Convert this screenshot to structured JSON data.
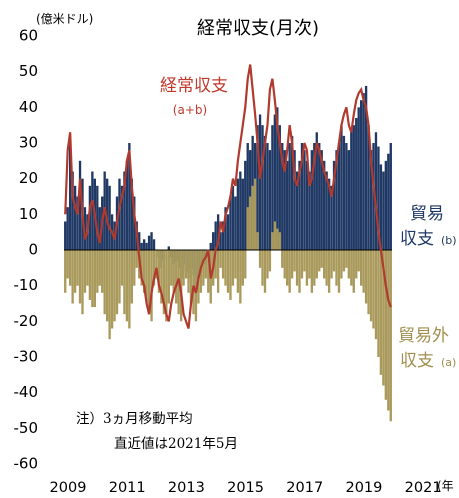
{
  "chart_data": {
    "type": "bar",
    "title": "経常収支(月次)",
    "unit_label": "(億米ドル)",
    "x_unit_label": "(年",
    "ylim": [
      -60,
      60
    ],
    "yticks": [
      60,
      50,
      40,
      30,
      20,
      10,
      0,
      -10,
      -20,
      -30,
      -40,
      -50,
      -60
    ],
    "xticks": [
      "2009",
      "2011",
      "2013",
      "2015",
      "2017",
      "2019",
      "2021"
    ],
    "x_range": [
      "2009-01",
      "2021-05"
    ],
    "colors": {
      "trade": "#1f3864",
      "non_trade": "#a99a5c",
      "current": "#b03a2e"
    },
    "series": [
      {
        "key": "trade",
        "name_line1": "貿易",
        "name_line2": "収支",
        "name_suffix": "(b)"
      },
      {
        "key": "non_trade",
        "name_line1": "貿易外",
        "name_line2": "収支",
        "name_suffix": "(a)"
      },
      {
        "key": "current",
        "name": "経常収支",
        "name_suffix": "(a+b)"
      }
    ],
    "trade_values": [
      8,
      12,
      30,
      22,
      18,
      15,
      25,
      20,
      12,
      10,
      18,
      22,
      20,
      18,
      12,
      15,
      22,
      20,
      18,
      10,
      8,
      15,
      20,
      18,
      22,
      25,
      30,
      20,
      15,
      8,
      5,
      2,
      3,
      2,
      4,
      5,
      3,
      0,
      -2,
      -5,
      -3,
      0,
      1,
      -2,
      -4,
      -3,
      -5,
      -8,
      -4,
      -6,
      -8,
      -5,
      -7,
      -10,
      -8,
      -6,
      -3,
      -4,
      -2,
      2,
      5,
      8,
      10,
      5,
      8,
      12,
      10,
      15,
      18,
      15,
      20,
      22,
      20,
      25,
      30,
      28,
      32,
      30,
      35,
      38,
      35,
      32,
      30,
      28,
      35,
      38,
      40,
      35,
      30,
      28,
      25,
      30,
      32,
      28,
      22,
      25,
      30,
      28,
      25,
      22,
      28,
      30,
      33,
      30,
      28,
      25,
      22,
      20,
      18,
      25,
      28,
      30,
      35,
      32,
      30,
      28,
      33,
      35,
      37,
      40,
      42,
      44,
      46,
      35,
      28,
      30,
      33,
      29,
      24,
      22,
      25,
      27,
      30
    ],
    "non_trade_values": [
      -12,
      -8,
      -10,
      -15,
      -12,
      -10,
      -15,
      -18,
      -12,
      -10,
      -14,
      -16,
      -16,
      -12,
      -10,
      -12,
      -18,
      -20,
      -25,
      -22,
      -20,
      -18,
      -15,
      -10,
      -18,
      -20,
      -22,
      -15,
      -10,
      -5,
      -8,
      -10,
      -12,
      -15,
      -18,
      -20,
      -10,
      -8,
      -12,
      -15,
      -18,
      -20,
      -15,
      -10,
      -12,
      -15,
      -18,
      -20,
      -10,
      -8,
      -12,
      -15,
      -18,
      -20,
      -15,
      -12,
      -10,
      -8,
      -12,
      -15,
      -10,
      -8,
      -12,
      -5,
      -8,
      -10,
      -12,
      -14,
      -10,
      -8,
      -12,
      -15,
      -10,
      -8,
      12,
      15,
      18,
      20,
      5,
      -5,
      -10,
      -12,
      -8,
      -6,
      5,
      8,
      6,
      5,
      -5,
      -8,
      -10,
      -12,
      -8,
      -6,
      -10,
      -12,
      -8,
      -6,
      -10,
      -8,
      -12,
      -10,
      -8,
      -6,
      -5,
      -8,
      -10,
      -12,
      -8,
      -6,
      -10,
      -12,
      -8,
      -6,
      -5,
      -8,
      -10,
      -12,
      -8,
      -6,
      -10,
      -12,
      -15,
      -18,
      -20,
      -22,
      -25,
      -30,
      -35,
      -38,
      -42,
      -45,
      -48
    ],
    "current_values": [
      10,
      28,
      33,
      15,
      12,
      10,
      20,
      10,
      3,
      5,
      12,
      14,
      10,
      5,
      2,
      8,
      12,
      8,
      6,
      5,
      3,
      8,
      12,
      15,
      18,
      25,
      28,
      18,
      10,
      5,
      -2,
      -8,
      -10,
      -15,
      -18,
      -12,
      -8,
      -5,
      -10,
      -12,
      -15,
      -18,
      -20,
      -15,
      -12,
      -10,
      -8,
      -12,
      -18,
      -20,
      -22,
      -15,
      -10,
      -12,
      -8,
      -5,
      -3,
      -2,
      0,
      -8,
      -5,
      0,
      2,
      8,
      5,
      10,
      12,
      15,
      20,
      18,
      25,
      30,
      35,
      40,
      48,
      52,
      45,
      38,
      30,
      20,
      25,
      30,
      35,
      45,
      48,
      42,
      35,
      30,
      25,
      22,
      28,
      35,
      30,
      20,
      18,
      22,
      25,
      30,
      28,
      18,
      20,
      25,
      30,
      28,
      25,
      22,
      20,
      18,
      15,
      20,
      25,
      30,
      35,
      38,
      40,
      35,
      33,
      38,
      42,
      44,
      45,
      42,
      40,
      35,
      25,
      18,
      12,
      5,
      0,
      -5,
      -10,
      -14,
      -16
    ]
  },
  "note": {
    "line1": "注）3ヵ月移動平均",
    "line2": "直近値は2021年5月"
  }
}
